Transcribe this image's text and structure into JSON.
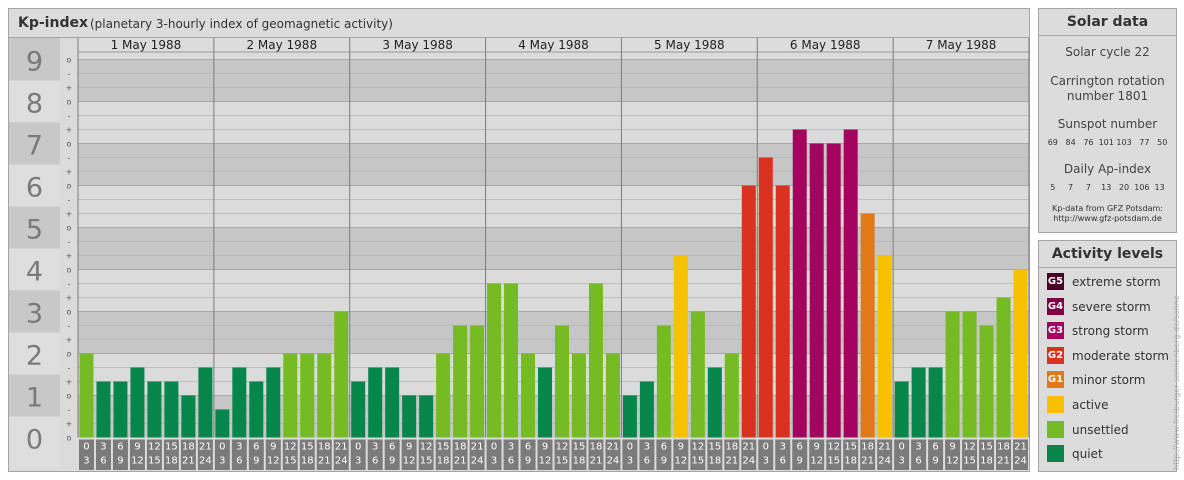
{
  "header": {
    "title": "Kp-index",
    "subtitle": "(planetary 3-hourly index of geomagnetic activity)"
  },
  "solar": {
    "title": "Solar data",
    "cycle": "Solar cycle 22",
    "carrington_line1": "Carrington rotation",
    "carrington_line2": "number 1801",
    "sunspot_label": "Sunspot number",
    "sunspot_values": "69   84   76  101 103   77   50",
    "ap_label": "Daily Ap-index",
    "ap_values": "5     7     7    13   20  106  13",
    "source_line1": "Kp-data from GFZ Potsdam:",
    "source_line2": "http://www.gfz-potsdam.de"
  },
  "legend": {
    "title": "Activity levels",
    "items": [
      {
        "badge": "G5",
        "label": "extreme storm",
        "color": "#4a0128"
      },
      {
        "badge": "G4",
        "label": "severe storm",
        "color": "#7d0146"
      },
      {
        "badge": "G3",
        "label": "strong storm",
        "color": "#a3045f"
      },
      {
        "badge": "G2",
        "label": "moderate storm",
        "color": "#d9321e"
      },
      {
        "badge": "G1",
        "label": "minor storm",
        "color": "#e37916"
      },
      {
        "badge": "",
        "label": "active",
        "color": "#f7c100"
      },
      {
        "badge": "",
        "label": "unsettled",
        "color": "#75bb23"
      },
      {
        "badge": "",
        "label": "quiet",
        "color": "#06864a"
      }
    ]
  },
  "credit": "http://www.freiburger-sonnenberg.de/sonne",
  "chart_data": {
    "type": "bar",
    "title": "Kp-index",
    "subtitle": "(planetary 3-hourly index of geomagnetic activity)",
    "ylim": [
      0,
      9
    ],
    "y_ticks": [
      "0",
      "1",
      "2",
      "3",
      "4",
      "5",
      "6",
      "7",
      "8",
      "9"
    ],
    "sub_ticks": [
      "o",
      "+",
      "-",
      "o",
      "+",
      "-",
      "o",
      "+",
      "-",
      "o",
      "+",
      "-",
      "o",
      "+",
      "-",
      "o",
      "+",
      "-",
      "o",
      "+",
      "-",
      "o",
      "+",
      "-",
      "o",
      "+",
      "-",
      "o"
    ],
    "days": [
      "1 May 1988",
      "2 May 1988",
      "3 May 1988",
      "4 May 1988",
      "5 May 1988",
      "6 May 1988",
      "7 May 1988"
    ],
    "interval_top": [
      "0",
      "3",
      "6",
      "9",
      "12",
      "15",
      "18",
      "21"
    ],
    "interval_bottom": [
      "3",
      "6",
      "9",
      "12",
      "15",
      "18",
      "21",
      "24"
    ],
    "values": [
      2.0,
      1.333,
      1.333,
      1.667,
      1.333,
      1.333,
      1.0,
      1.667,
      0.667,
      1.667,
      1.333,
      1.667,
      2.0,
      2.0,
      2.0,
      3.0,
      1.333,
      1.667,
      1.667,
      1.0,
      1.0,
      2.0,
      2.667,
      2.667,
      3.667,
      3.667,
      2.0,
      1.667,
      2.667,
      2.0,
      3.667,
      2.0,
      1.0,
      1.333,
      2.667,
      4.333,
      3.0,
      1.667,
      2.0,
      6.0,
      6.667,
      6.0,
      7.333,
      7.0,
      7.0,
      7.333,
      5.333,
      4.333,
      1.333,
      1.667,
      1.667,
      3.0,
      3.0,
      2.667,
      3.333,
      4.0
    ]
  }
}
